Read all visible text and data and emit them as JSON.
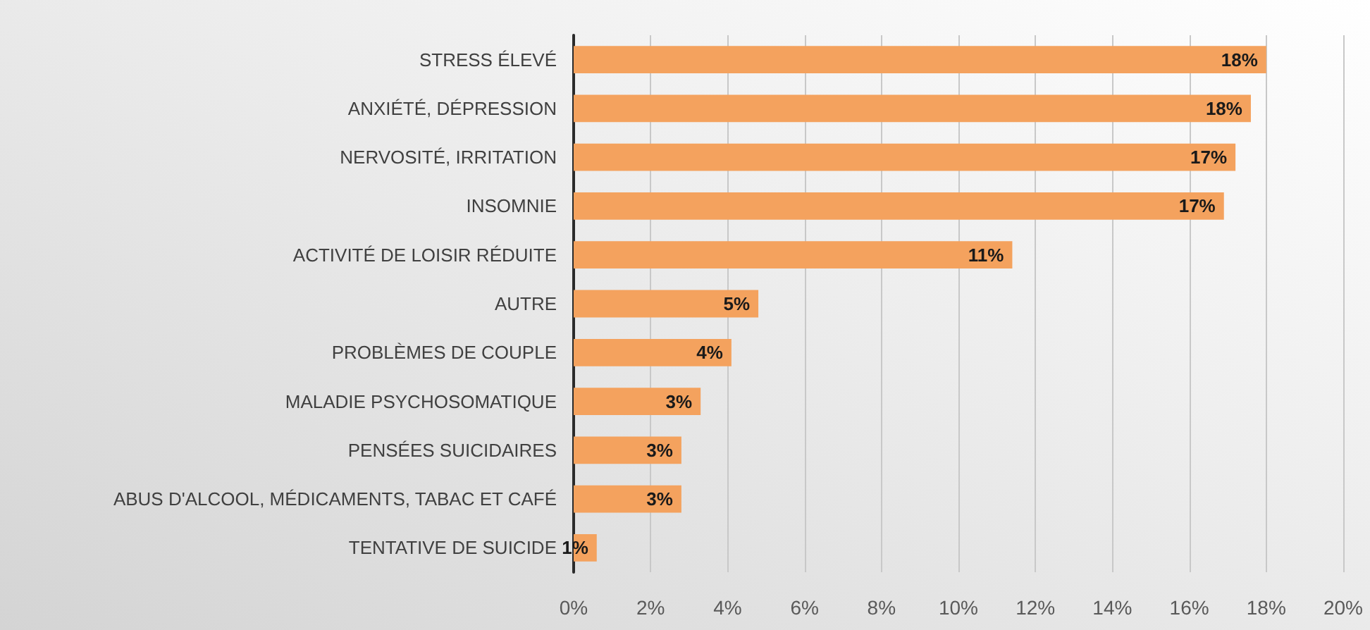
{
  "chart_data": {
    "type": "bar",
    "orientation": "horizontal",
    "categories": [
      "STRESS ÉLEVÉ",
      "ANXIÉTÉ, DÉPRESSION",
      "NERVOSITÉ, IRRITATION",
      "INSOMNIE",
      "ACTIVITÉ DE LOISIR RÉDUITE",
      "AUTRE",
      "PROBLÈMES DE COUPLE",
      "MALADIE PSYCHOSOMATIQUE",
      "PENSÉES SUICIDAIRES",
      "ABUS D'ALCOOL, MÉDICAMENTS, TABAC ET CAFÉ",
      "TENTATIVE DE SUICIDE"
    ],
    "values": [
      18.0,
      17.6,
      17.2,
      16.9,
      11.4,
      4.8,
      4.1,
      3.3,
      2.8,
      2.8,
      0.6
    ],
    "value_labels": [
      "18%",
      "18%",
      "17%",
      "17%",
      "11%",
      "5%",
      "4%",
      "3%",
      "3%",
      "3%",
      "1%"
    ],
    "color": "#f4a25e",
    "xlim": [
      0,
      20
    ],
    "xticks": [
      {
        "value": 0,
        "label": "0%"
      },
      {
        "value": 2,
        "label": "2%"
      },
      {
        "value": 4,
        "label": "4%"
      },
      {
        "value": 6,
        "label": "6%"
      },
      {
        "value": 8,
        "label": "8%"
      },
      {
        "value": 10,
        "label": "10%"
      },
      {
        "value": 12,
        "label": "12%"
      },
      {
        "value": 14,
        "label": "14%"
      },
      {
        "value": 16,
        "label": "16%"
      },
      {
        "value": 18,
        "label": "18%"
      },
      {
        "value": 20,
        "label": "20%"
      }
    ],
    "grid": "x"
  }
}
